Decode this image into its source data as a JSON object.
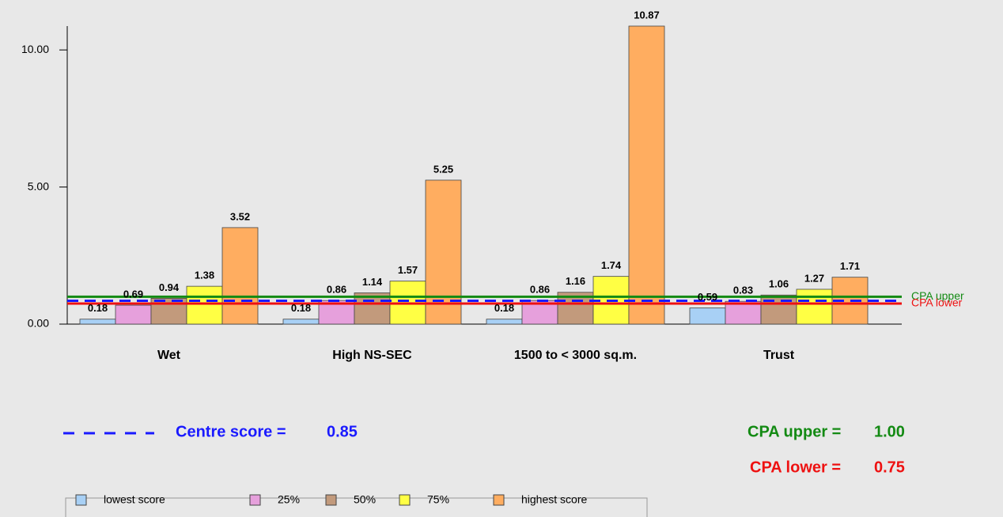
{
  "chart_data": {
    "type": "bar",
    "categories": [
      "Wet",
      "High NS-SEC",
      "1500 to < 3000 sq.m.",
      "Trust"
    ],
    "series": [
      {
        "name": "lowest score",
        "color": "#a8d0f5",
        "values": [
          0.18,
          0.18,
          0.18,
          0.59
        ]
      },
      {
        "name": "25%",
        "color": "#e6a0dc",
        "values": [
          0.69,
          0.86,
          0.86,
          0.83
        ]
      },
      {
        "name": "50%",
        "color": "#c29a7c",
        "values": [
          0.94,
          1.14,
          1.16,
          1.06
        ]
      },
      {
        "name": "75%",
        "color": "#ffff44",
        "values": [
          1.38,
          1.57,
          1.74,
          1.27
        ]
      },
      {
        "name": "highest score",
        "color": "#ffad60",
        "values": [
          3.52,
          5.25,
          10.87,
          1.71
        ]
      }
    ],
    "ylim": [
      0,
      10.87
    ],
    "yticks": [
      {
        "value": 0,
        "label": "0.00"
      },
      {
        "value": 5,
        "label": "5.00"
      },
      {
        "value": 10,
        "label": "10.00"
      }
    ],
    "reference_lines": [
      {
        "label": "Centre score =",
        "value": 0.85,
        "value_label": "0.85",
        "color": "#1a1aff",
        "style": "dashed"
      },
      {
        "label": "CPA upper =",
        "end_label": "CPA upper",
        "value": 1.0,
        "value_label": "1.00",
        "color": "#138a13",
        "style": "solid"
      },
      {
        "label": "CPA lower =",
        "end_label": "CPA lower",
        "value": 0.75,
        "value_label": "0.75",
        "color": "#ee1111",
        "style": "solid"
      }
    ],
    "legend": "bottom-left"
  }
}
